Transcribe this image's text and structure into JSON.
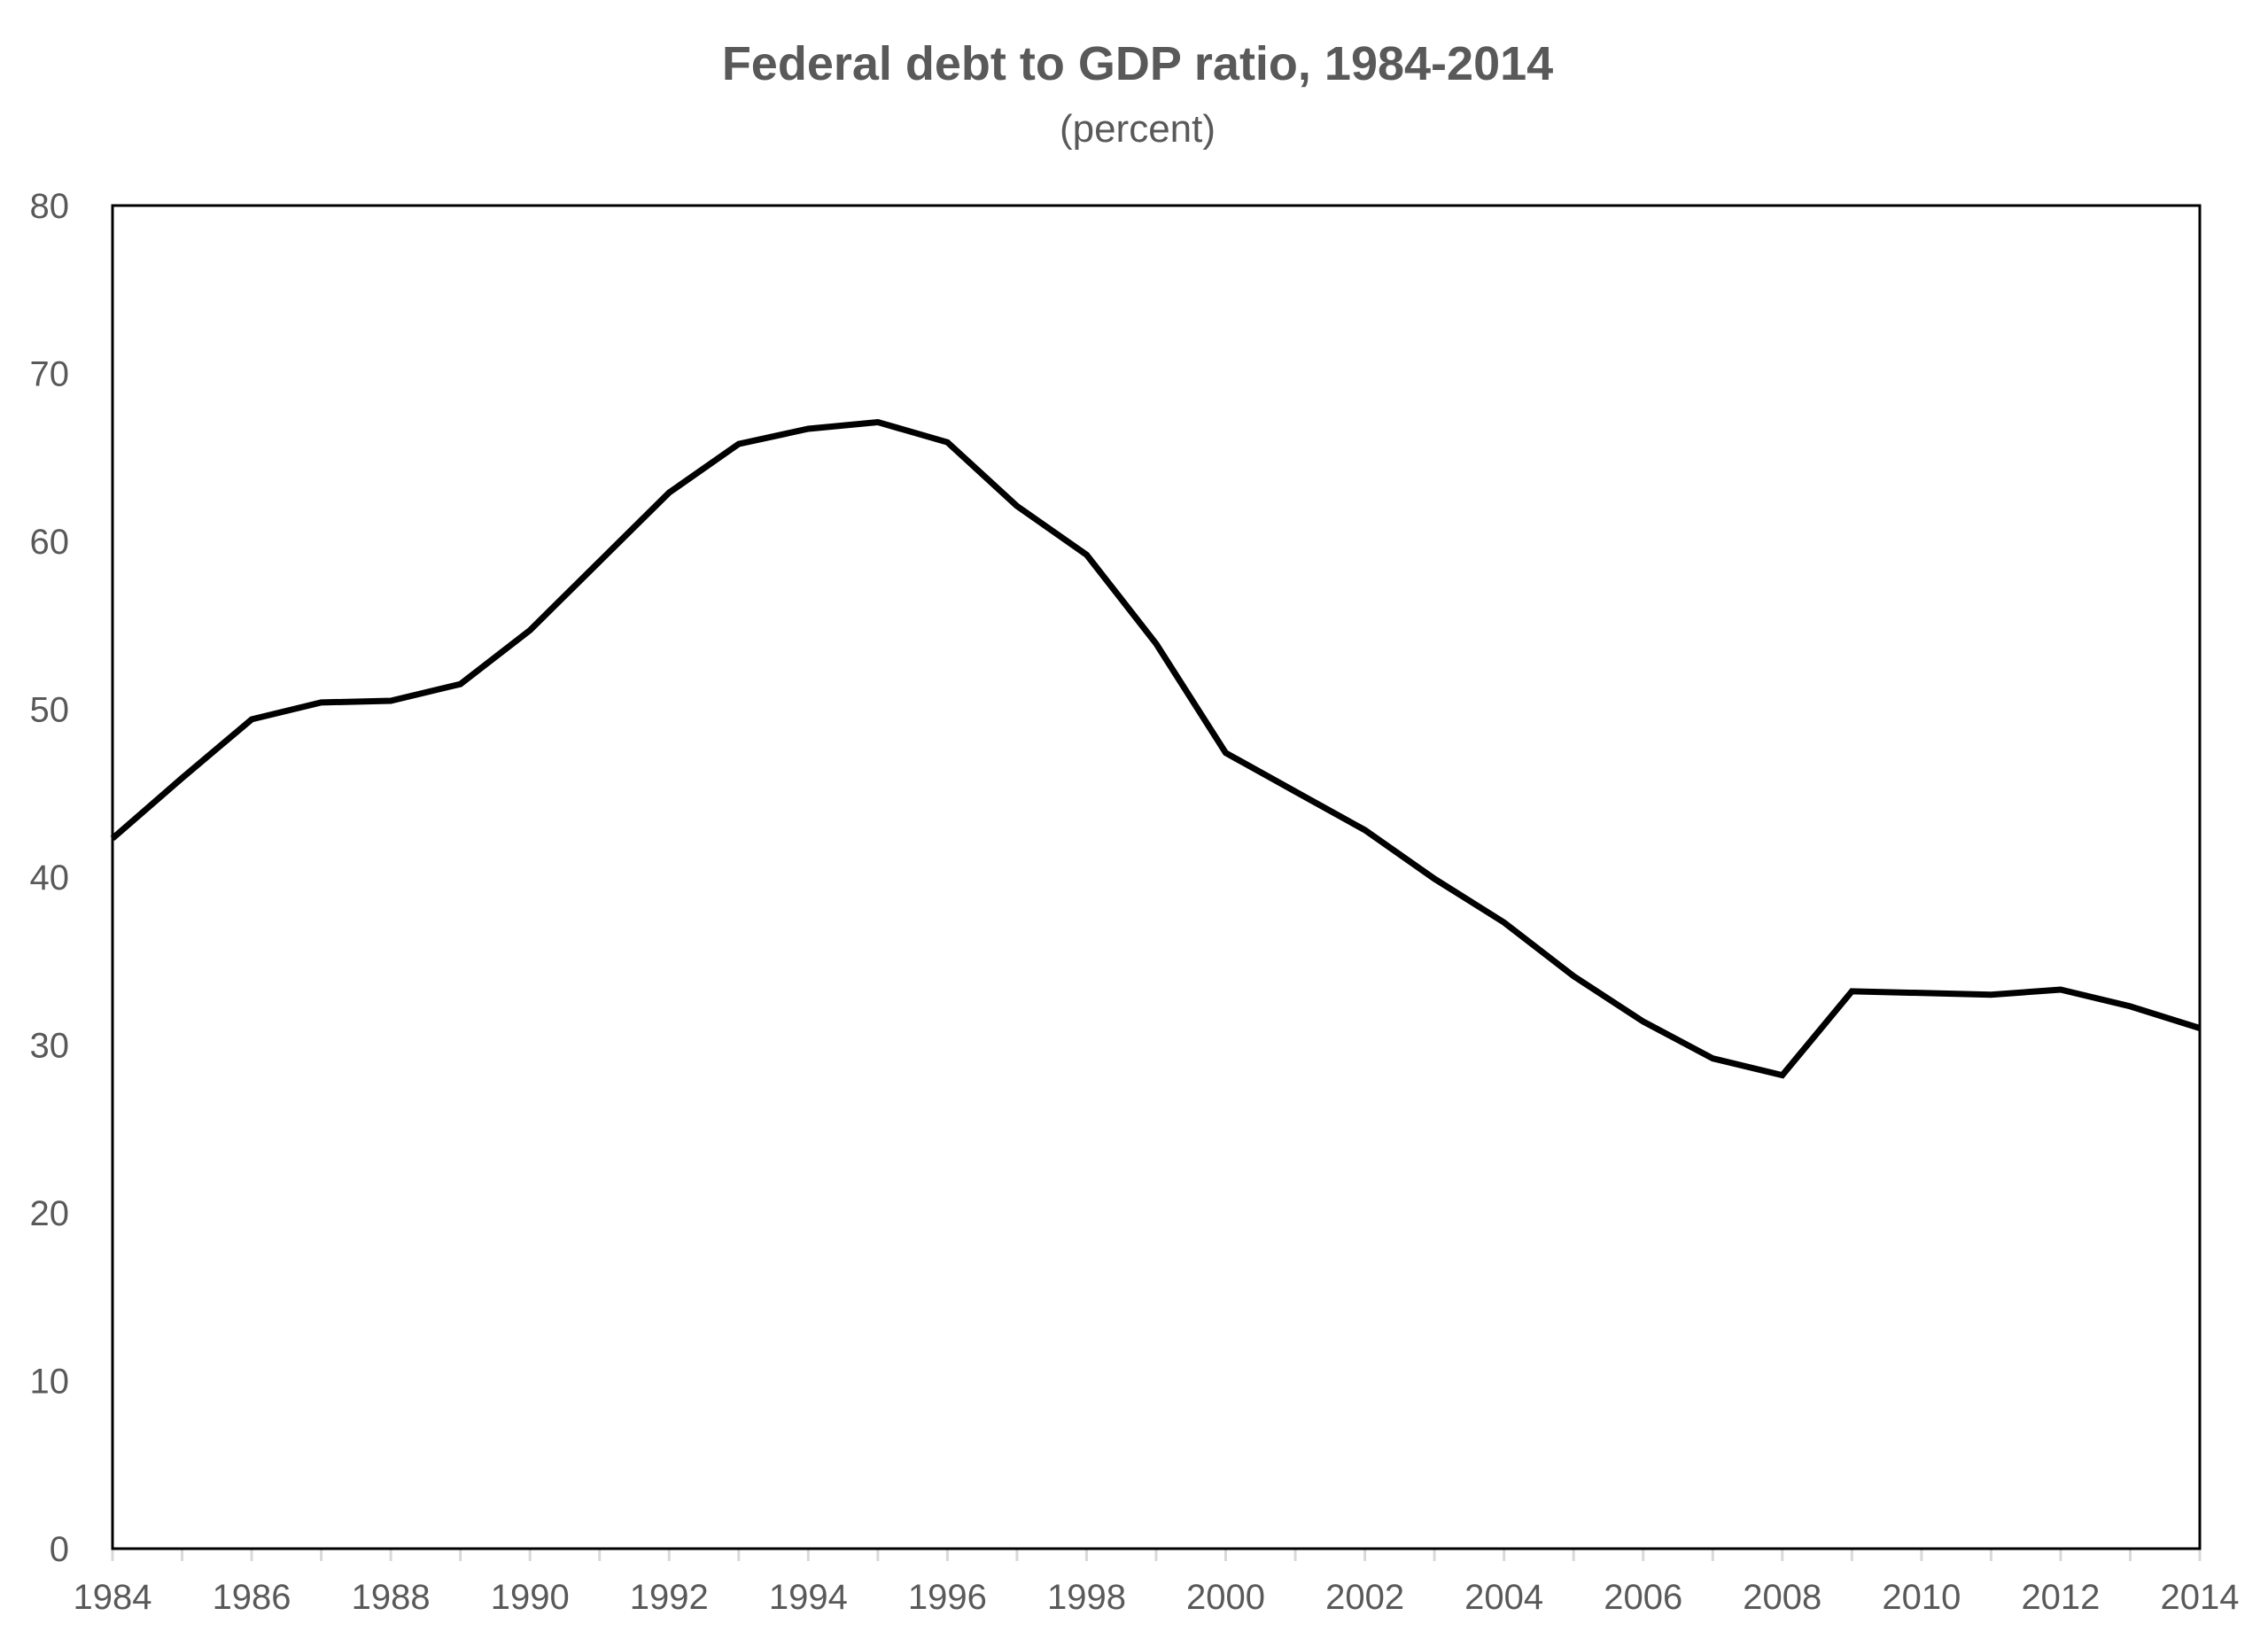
{
  "chart_data": {
    "type": "line",
    "title": "Federal debt to GDP ratio, 1984-2014",
    "subtitle": "(percent)",
    "xlabel": "",
    "ylabel": "",
    "xlim": [
      1984,
      2014
    ],
    "ylim": [
      0,
      80
    ],
    "x_ticks": [
      1984,
      1986,
      1988,
      1990,
      1992,
      1994,
      1996,
      1998,
      2000,
      2002,
      2004,
      2006,
      2008,
      2010,
      2012,
      2014
    ],
    "y_ticks": [
      0,
      10,
      20,
      30,
      40,
      50,
      60,
      70,
      80
    ],
    "x_tick_labels": [
      "1984",
      "1986",
      "1988",
      "1990",
      "1992",
      "1994",
      "1996",
      "1998",
      "2000",
      "2002",
      "2004",
      "2006",
      "2008",
      "2010",
      "2012",
      "2014"
    ],
    "y_tick_labels": [
      "0",
      "10",
      "20",
      "30",
      "40",
      "50",
      "60",
      "70",
      "80"
    ],
    "grid": false,
    "legend": "none",
    "series": [
      {
        "color": "#000000",
        "x": [
          1984,
          1985,
          1986,
          1987,
          1988,
          1989,
          1990,
          1991,
          1992,
          1993,
          1994,
          1995,
          1996,
          1997,
          1998,
          1999,
          2000,
          2001,
          2002,
          2003,
          2004,
          2005,
          2006,
          2007,
          2008,
          2009,
          2010,
          2011,
          2012,
          2013,
          2014
        ],
        "values": [
          42.3,
          45.9,
          49.4,
          50.4,
          50.5,
          51.5,
          54.7,
          58.8,
          62.9,
          65.8,
          66.7,
          67.1,
          65.9,
          62.1,
          59.2,
          53.9,
          47.4,
          45.1,
          42.8,
          39.9,
          37.3,
          34.1,
          31.4,
          29.2,
          28.2,
          33.2,
          33.1,
          33.0,
          33.3,
          32.3,
          31.0
        ]
      }
    ]
  }
}
